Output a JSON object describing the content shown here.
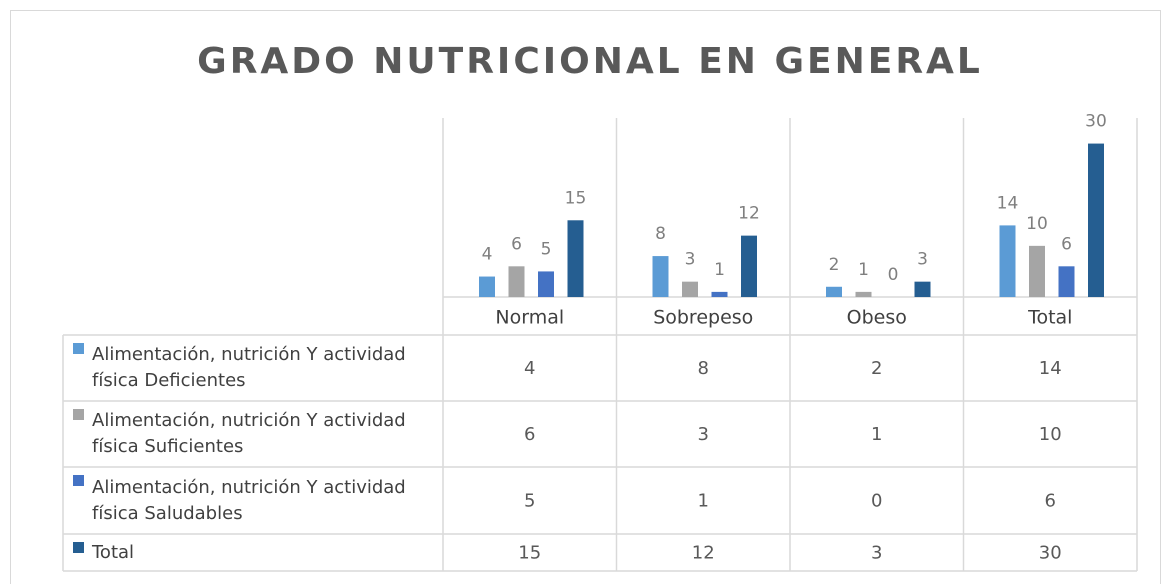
{
  "chart_data": {
    "type": "bar",
    "title": "GRADO NUTRICIONAL EN GENERAL",
    "categories": [
      "Normal",
      "Sobrepeso",
      "Obeso",
      "Total"
    ],
    "series": [
      {
        "name": "Alimentación, nutrición Y actividad física Deficientes",
        "color": "#5b9bd5",
        "values": [
          4,
          8,
          2,
          14
        ]
      },
      {
        "name": "Alimentación, nutrición Y actividad física Suficientes",
        "color": "#a5a5a5",
        "values": [
          6,
          3,
          1,
          10
        ]
      },
      {
        "name": "Alimentación, nutrición Y actividad física Saludables",
        "color": "#4472c4",
        "values": [
          5,
          1,
          0,
          6
        ]
      },
      {
        "name": "Total",
        "color": "#255e91",
        "values": [
          15,
          12,
          3,
          30
        ]
      }
    ],
    "ylim": [
      0,
      35
    ],
    "data_table": true
  }
}
